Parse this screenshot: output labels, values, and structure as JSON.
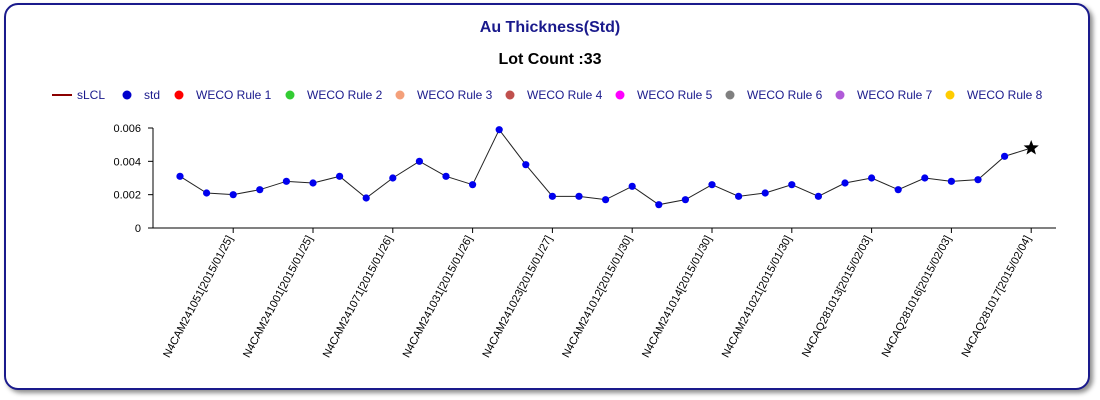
{
  "chart_data": {
    "type": "line",
    "title": "Au Thickness(Std)",
    "subtitle": "Lot Count :33",
    "legend": [
      {
        "name": "sLCL",
        "color": "#8b0000",
        "marker": "line"
      },
      {
        "name": "std",
        "color": "#0000cc",
        "marker": "dot"
      },
      {
        "name": "WECO Rule 1",
        "color": "#ff0000",
        "marker": "dot"
      },
      {
        "name": "WECO Rule 2",
        "color": "#33cc33",
        "marker": "dot"
      },
      {
        "name": "WECO Rule 3",
        "color": "#f4a07a",
        "marker": "dot"
      },
      {
        "name": "WECO Rule 4",
        "color": "#c0504d",
        "marker": "dot"
      },
      {
        "name": "WECO Rule 5",
        "color": "#ff00ff",
        "marker": "dot"
      },
      {
        "name": "WECO Rule 6",
        "color": "#808080",
        "marker": "dot"
      },
      {
        "name": "WECO Rule 7",
        "color": "#b05ad8",
        "marker": "dot"
      },
      {
        "name": "WECO Rule 8",
        "color": "#ffcc00",
        "marker": "dot"
      }
    ],
    "legend_position": "top",
    "ylim": [
      0,
      0.006
    ],
    "yticks": [
      0,
      0.002,
      0.004,
      0.006
    ],
    "ytick_labels": [
      "0",
      "0.002",
      "0.004",
      "0.006"
    ],
    "xtick_labels": [
      "N4CAM241051[2015/01/25]",
      "N4CAM241001[2015/01/25]",
      "N4CAM241071[2015/01/26]",
      "N4CAM241031[2015/01/26]",
      "N4CAM241023[2015/01/27]",
      "N4CAM241012[2015/01/30]",
      "N4CAM241014[2015/01/30]",
      "N4CAM241021[2015/01/30]",
      "N4CAQ281013[2015/02/03]",
      "N4CAQ281016[2015/02/03]",
      "N4CAQ281017[2015/02/04]"
    ],
    "xtick_indices": [
      2,
      5,
      8,
      11,
      14,
      17,
      20,
      23,
      26,
      29,
      32
    ],
    "series": [
      {
        "name": "std",
        "color": "#0000ee",
        "values": [
          0.0031,
          0.0021,
          0.002,
          0.0023,
          0.0028,
          0.0027,
          0.0031,
          0.0018,
          0.003,
          0.004,
          0.0031,
          0.0026,
          0.0059,
          0.0038,
          0.0019,
          0.0019,
          0.0017,
          0.0025,
          0.0014,
          0.0017,
          0.0026,
          0.0019,
          0.0021,
          0.0026,
          0.0019,
          0.0027,
          0.003,
          0.0023,
          0.003,
          0.0028,
          0.0029,
          0.0043,
          0.0048
        ]
      }
    ],
    "last_point_marker": "star",
    "grid": false
  }
}
